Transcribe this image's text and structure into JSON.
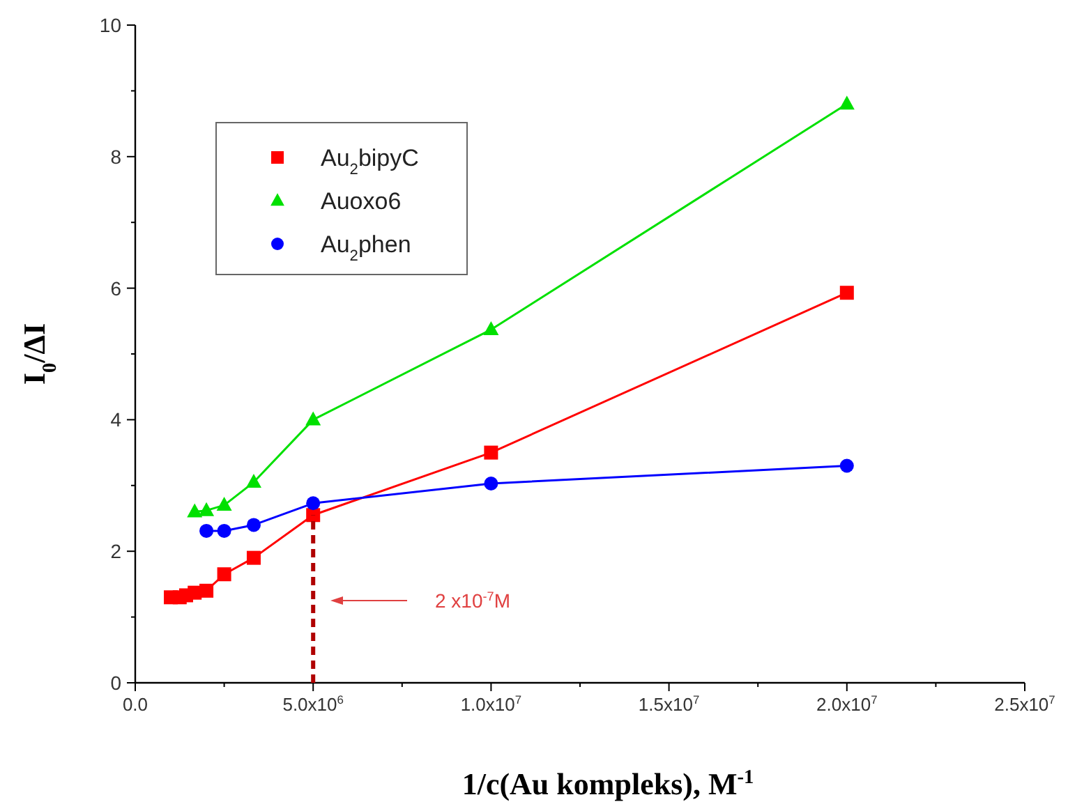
{
  "chart_data": {
    "type": "line",
    "xlabel": "1/c(Au kompleks), M$^{-1}$",
    "ylabel": "I$_{0}$/ΔI",
    "xlim": [
      0,
      25000000
    ],
    "ylim": [
      0,
      10
    ],
    "xticks": [
      {
        "value": 0,
        "label": "0.0"
      },
      {
        "value": 2500000,
        "label": null
      },
      {
        "value": 5000000,
        "label": "5.0x10$^{6}$"
      },
      {
        "value": 7500000,
        "label": null
      },
      {
        "value": 10000000,
        "label": "1.0x10$^{7}$"
      },
      {
        "value": 12500000,
        "label": null
      },
      {
        "value": 15000000,
        "label": "1.5x10$^{7}$"
      },
      {
        "value": 17500000,
        "label": null
      },
      {
        "value": 20000000,
        "label": "2.0x10$^{7}$"
      },
      {
        "value": 22500000,
        "label": null
      },
      {
        "value": 25000000,
        "label": "2.5x10$^{7}$"
      }
    ],
    "yticks": [
      0,
      {
        "value": 1,
        "label": null
      },
      2,
      {
        "value": 3,
        "label": null
      },
      4,
      {
        "value": 5,
        "label": null
      },
      6,
      {
        "value": 7,
        "label": null
      },
      8,
      {
        "value": 9,
        "label": null
      },
      10
    ],
    "grid": false,
    "legend": "top left",
    "series": [
      {
        "name": "Au$_{2}$bipyC",
        "color": "#ff0000",
        "marker": "square",
        "x": [
          1000000,
          1250000,
          1430000,
          1670000,
          2000000,
          2500000,
          3330000,
          5000000,
          10000000,
          20000000
        ],
        "values": [
          1.3,
          1.3,
          1.33,
          1.37,
          1.4,
          1.65,
          1.9,
          2.55,
          3.5,
          5.93
        ]
      },
      {
        "name": "Auoxo6",
        "color": "#00e000",
        "marker": "triangle",
        "x": [
          1670000,
          2000000,
          2500000,
          3330000,
          5000000,
          10000000,
          20000000
        ],
        "values": [
          2.6,
          2.62,
          2.7,
          3.05,
          4.0,
          5.37,
          8.8
        ]
      },
      {
        "name": "Au$_{2}$phen",
        "color": "#0000ff",
        "marker": "circle",
        "x": [
          2000000,
          2500000,
          3330000,
          5000000,
          10000000,
          20000000
        ],
        "values": [
          2.31,
          2.31,
          2.4,
          2.73,
          3.03,
          3.3
        ]
      },
      {
        "color": "#b00000",
        "marker": "none",
        "line_style": "dashed",
        "x": [
          5000000,
          5000000
        ],
        "values": [
          0,
          2.55
        ]
      }
    ],
    "annotations": [
      "2 x10$^{-7}$M"
    ]
  }
}
